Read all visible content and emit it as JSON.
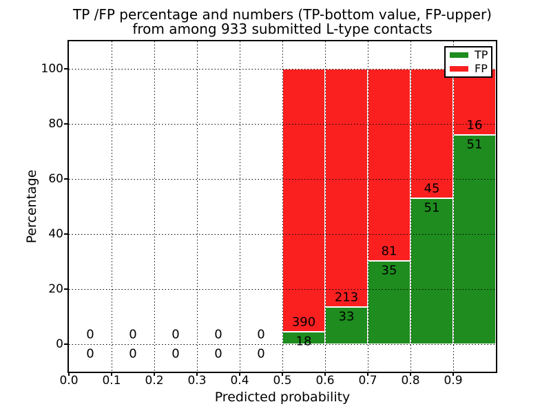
{
  "chart_data": {
    "type": "bar",
    "stacked": true,
    "title_line1": "TP /FP percentage and numbers (TP-bottom value, FP-upper)",
    "title_line2": "from among 933 submitted L-type contacts",
    "xlabel": "Predicted probability",
    "ylabel": "Percentage",
    "total_submitted_contacts": 933,
    "x_tick_labels": [
      "0.0",
      "0.1",
      "0.2",
      "0.3",
      "0.4",
      "0.5",
      "0.6",
      "0.7",
      "0.8",
      "0.9"
    ],
    "y_tick_values": [
      0,
      20,
      40,
      60,
      80,
      100
    ],
    "xlim": [
      0.0,
      1.0
    ],
    "ylim": [
      -10,
      110
    ],
    "grid": "dotted",
    "bar_width": 0.1,
    "y_unit": "percent of bin total (TP+FP stack to 100%)",
    "categories": [
      0.05,
      0.15,
      0.25,
      0.35,
      0.45,
      0.55,
      0.65,
      0.75,
      0.85,
      0.95
    ],
    "series": [
      {
        "name": "TP",
        "counts": [
          0,
          0,
          0,
          0,
          0,
          18,
          33,
          35,
          51,
          51
        ],
        "color": "#1e8c1e"
      },
      {
        "name": "FP",
        "counts": [
          0,
          0,
          0,
          0,
          0,
          390,
          213,
          81,
          45,
          16
        ],
        "color": "#fb2020"
      }
    ],
    "tp_percent_by_bin": [
      null,
      null,
      null,
      null,
      null,
      4.41,
      13.41,
      30.17,
      53.13,
      76.12
    ],
    "legend": {
      "position": "upper right",
      "items": [
        {
          "label": "TP",
          "color": "#1e8c1e"
        },
        {
          "label": "FP",
          "color": "#fb2020"
        }
      ]
    }
  }
}
